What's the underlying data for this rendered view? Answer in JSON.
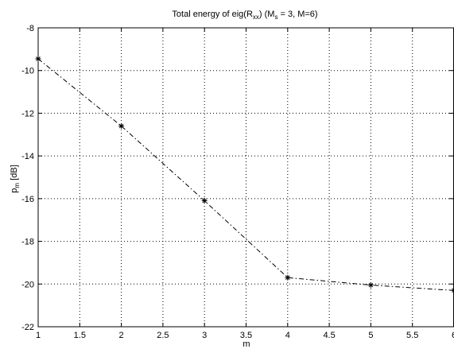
{
  "chart_data": {
    "type": "line",
    "title": {
      "prefix": "Total energy of eig(R",
      "sub1": "xx",
      "middle": ")  (M",
      "sub2": "s",
      "suffix": " = 3, M=6)"
    },
    "xlabel": "m",
    "ylabel": {
      "main": "p",
      "sub": "m",
      "rest": " [dB]"
    },
    "xlim": [
      1,
      6
    ],
    "ylim": [
      -22,
      -8
    ],
    "xticks": [
      "1",
      "1.5",
      "2",
      "2.5",
      "3",
      "3.5",
      "4",
      "4.5",
      "5",
      "5.5",
      "6"
    ],
    "yticks": [
      "-22",
      "-20",
      "-18",
      "-16",
      "-14",
      "-12",
      "-10",
      "-8"
    ],
    "grid": true,
    "series": [
      {
        "x": [
          1,
          2,
          3,
          4,
          5,
          6
        ],
        "y": [
          -9.45,
          -12.6,
          -16.1,
          -19.7,
          -20.05,
          -20.3
        ],
        "line_style": "dash-dot",
        "marker": "asterisk",
        "color": "#000000"
      }
    ]
  }
}
